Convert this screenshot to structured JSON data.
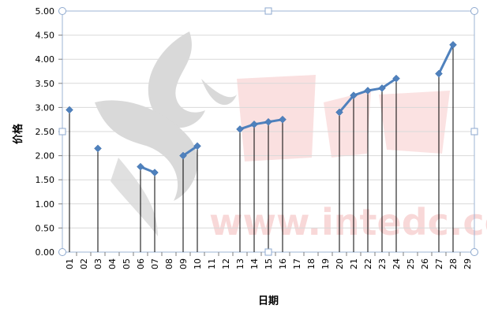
{
  "chart_data": {
    "type": "line",
    "xlabel": "日期",
    "ylabel": "价格",
    "categories": [
      "01",
      "02",
      "03",
      "04",
      "05",
      "06",
      "07",
      "08",
      "09",
      "10",
      "11",
      "12",
      "13",
      "14",
      "15",
      "16",
      "17",
      "18",
      "19",
      "20",
      "21",
      "22",
      "23",
      "24",
      "25",
      "26",
      "27",
      "28",
      "29"
    ],
    "series": [
      {
        "values": [
          2.95,
          null,
          2.15,
          null,
          null,
          1.77,
          1.65,
          null,
          2.0,
          2.2,
          null,
          null,
          2.55,
          2.65,
          2.7,
          2.75,
          null,
          null,
          null,
          2.9,
          3.25,
          3.35,
          3.4,
          3.6,
          null,
          null,
          3.7,
          4.3,
          null
        ]
      }
    ],
    "ylim": [
      0,
      5
    ],
    "yticks": [
      "0.00",
      "0.50",
      "1.00",
      "1.50",
      "2.00",
      "2.50",
      "3.00",
      "3.50",
      "4.00",
      "4.50",
      "5.00"
    ],
    "grid": true,
    "drop_lines": true,
    "line_color": "#4f81bd",
    "marker": "diamond",
    "watermark": "www.intedc.com"
  }
}
